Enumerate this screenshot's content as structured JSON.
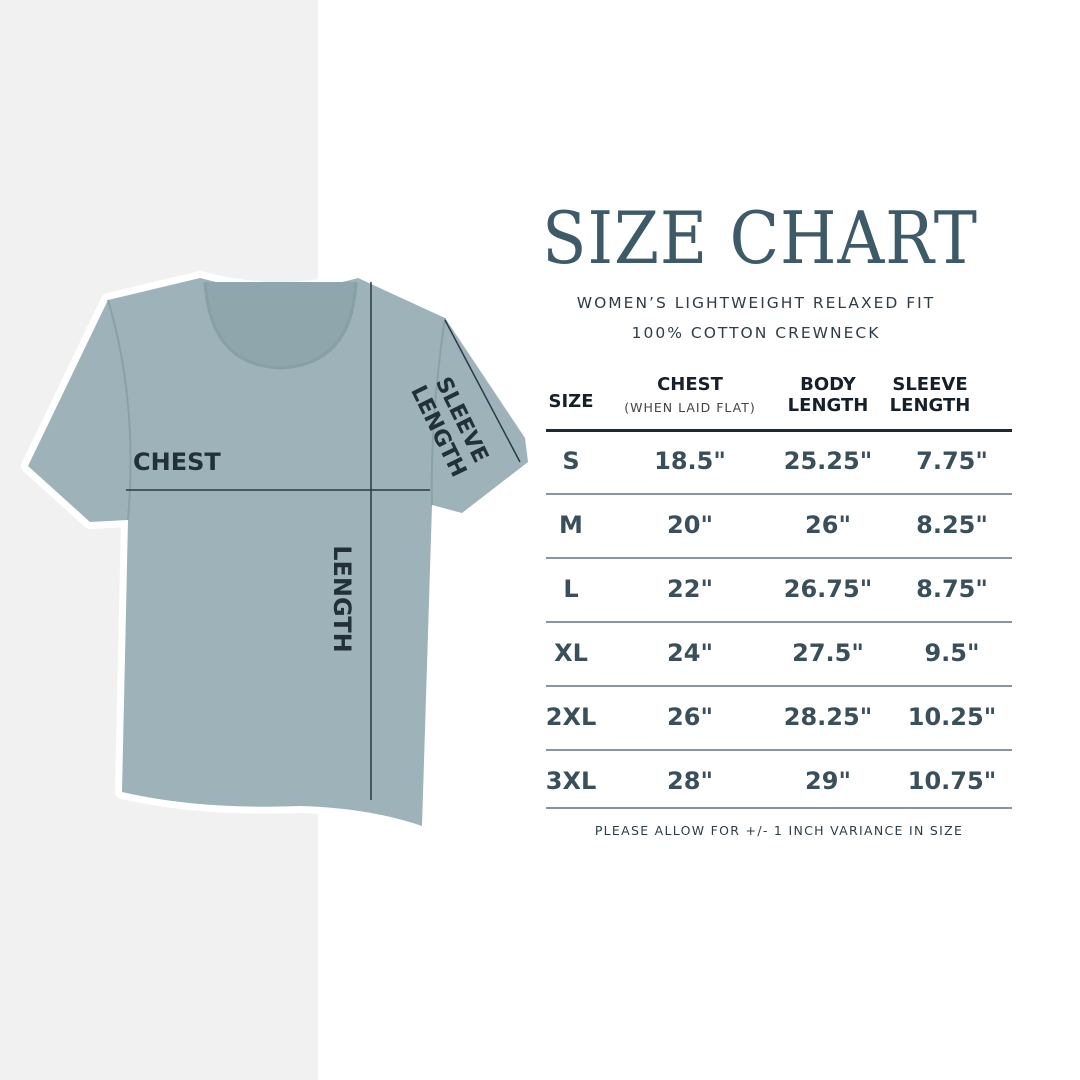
{
  "title": "SIZE CHART",
  "subtitle_line1": "WOMEN’S LIGHTWEIGHT RELAXED FIT",
  "subtitle_line2": "100% COTTON CREWNECK",
  "colors": {
    "title": "#3e5a68",
    "shirt": "#9db3b9",
    "text": "#3b4f5a"
  },
  "shirt_labels": {
    "chest": "CHEST",
    "length": "LENGTH",
    "sleeve1": "SLEEVE",
    "sleeve2": "LENGTH"
  },
  "table": {
    "headers": {
      "size": "SIZE",
      "chest": "CHEST",
      "chest_note": "(WHEN LAID FLAT)",
      "body1": "BODY",
      "body2": "LENGTH",
      "sleeve1": "SLEEVE",
      "sleeve2": "LENGTH"
    },
    "rows": [
      [
        "S",
        "18.5\"",
        "25.25\"",
        "7.75\""
      ],
      [
        "M",
        "20\"",
        "26\"",
        "8.25\""
      ],
      [
        "L",
        "22\"",
        "26.75\"",
        "8.75\""
      ],
      [
        "XL",
        "24\"",
        "27.5\"",
        "9.5\""
      ],
      [
        "2XL",
        "26\"",
        "28.25\"",
        "10.25\""
      ],
      [
        "3XL",
        "28\"",
        "29\"",
        "10.75\""
      ]
    ]
  },
  "note": "PLEASE ALLOW FOR +/- 1 INCH VARIANCE IN SIZE"
}
